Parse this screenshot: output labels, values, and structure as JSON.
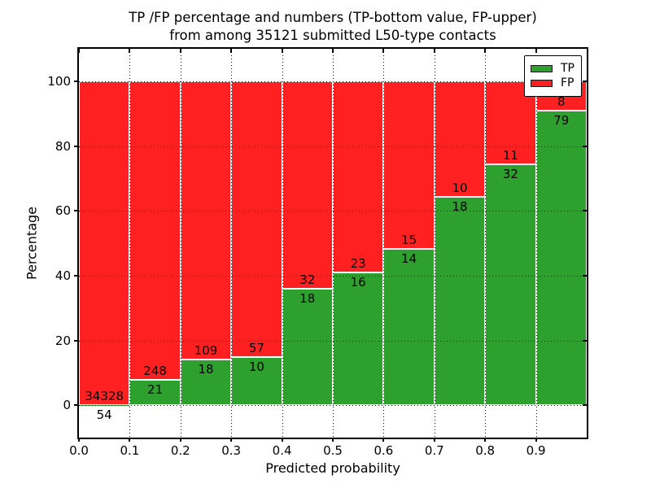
{
  "title": {
    "line1": "TP /FP percentage and numbers (TP-bottom value, FP-upper)",
    "line2": "from among 35121 submitted L50-type contacts"
  },
  "colors": {
    "tp_green": "#2da02d",
    "fp_red": "#ff2121",
    "bar_edge": "#ffffff",
    "axis": "#000000",
    "grid": "#000000",
    "background": "#ffffff"
  },
  "legend": {
    "items": [
      {
        "label": "TP",
        "color": "#2da02d"
      },
      {
        "label": "FP",
        "color": "#ff2121"
      }
    ]
  },
  "axes": {
    "xlabel": "Predicted probability",
    "ylabel": "Percentage"
  },
  "chart_data": {
    "type": "bar",
    "stacked": true,
    "title": "TP /FP percentage and numbers (TP-bottom value, FP-upper) from among 35121 submitted L50-type contacts",
    "total_submitted": 35121,
    "xlabel": "Predicted probability",
    "ylabel": "Percentage",
    "xlim": [
      0.0,
      1.0
    ],
    "ylim": [
      -10,
      110
    ],
    "grid": true,
    "legend_entries": [
      "TP",
      "FP"
    ],
    "legend_position": "upper right",
    "xticks": [
      0.0,
      0.1,
      0.2,
      0.3,
      0.4,
      0.5,
      0.6,
      0.7,
      0.8,
      0.9
    ],
    "xtick_labels": [
      "0.0",
      "0.1",
      "0.2",
      "0.3",
      "0.4",
      "0.5",
      "0.6",
      "0.7",
      "0.8",
      "0.9"
    ],
    "yticks": [
      0,
      20,
      40,
      60,
      80,
      100
    ],
    "ytick_labels": [
      "0",
      "20",
      "40",
      "60",
      "80",
      "100"
    ],
    "bins": [
      {
        "x_range": [
          0.0,
          0.1
        ],
        "tp_count": 54,
        "fp_count": 34328,
        "tp_pct": 0.16,
        "fp_pct": 99.84
      },
      {
        "x_range": [
          0.1,
          0.2
        ],
        "tp_count": 21,
        "fp_count": 248,
        "tp_pct": 7.81,
        "fp_pct": 92.19
      },
      {
        "x_range": [
          0.2,
          0.3
        ],
        "tp_count": 18,
        "fp_count": 109,
        "tp_pct": 14.17,
        "fp_pct": 85.83
      },
      {
        "x_range": [
          0.3,
          0.4
        ],
        "tp_count": 10,
        "fp_count": 57,
        "tp_pct": 14.93,
        "fp_pct": 85.07
      },
      {
        "x_range": [
          0.4,
          0.5
        ],
        "tp_count": 18,
        "fp_count": 32,
        "tp_pct": 36.0,
        "fp_pct": 64.0
      },
      {
        "x_range": [
          0.5,
          0.6
        ],
        "tp_count": 16,
        "fp_count": 23,
        "tp_pct": 41.03,
        "fp_pct": 58.97
      },
      {
        "x_range": [
          0.6,
          0.7
        ],
        "tp_count": 14,
        "fp_count": 15,
        "tp_pct": 48.28,
        "fp_pct": 51.72
      },
      {
        "x_range": [
          0.7,
          0.8
        ],
        "tp_count": 18,
        "fp_count": 10,
        "tp_pct": 64.29,
        "fp_pct": 35.71
      },
      {
        "x_range": [
          0.8,
          0.9
        ],
        "tp_count": 32,
        "fp_count": 11,
        "tp_pct": 74.42,
        "fp_pct": 25.58
      },
      {
        "x_range": [
          0.9,
          1.0
        ],
        "tp_count": 79,
        "fp_count": 8,
        "tp_pct": 90.8,
        "fp_pct": 9.2
      }
    ]
  }
}
